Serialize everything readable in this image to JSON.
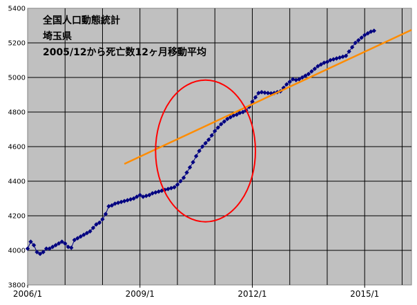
{
  "chart_data": {
    "type": "line",
    "title_lines": [
      "全国人口動態統計",
      "埼玉県",
      "2005/12から死亡数12ヶ月移動平均"
    ],
    "xlabel": "",
    "ylabel": "",
    "x_ticks": [
      "2006/1",
      "2009/1",
      "2012/1",
      "2015/1"
    ],
    "x_range": [
      "2006/1",
      "2016/4"
    ],
    "y_ticks": [
      3800,
      4000,
      4200,
      4400,
      4600,
      4800,
      5000,
      5200,
      5400
    ],
    "ylim": [
      3800,
      5400
    ],
    "grid": true,
    "plot_background": "#c0c0c0",
    "series": [
      {
        "type": "line-markers",
        "marker": "diamond",
        "color": "#000080",
        "x_start": "2006/1",
        "step": "1 month",
        "values": [
          4010,
          4050,
          4030,
          3990,
          3980,
          3990,
          4010,
          4010,
          4020,
          4030,
          4040,
          4050,
          4040,
          4020,
          4015,
          4060,
          4070,
          4080,
          4090,
          4100,
          4110,
          4130,
          4150,
          4160,
          4180,
          4210,
          4255,
          4260,
          4270,
          4275,
          4280,
          4285,
          4290,
          4295,
          4300,
          4310,
          4320,
          4310,
          4315,
          4320,
          4330,
          4335,
          4340,
          4345,
          4350,
          4355,
          4360,
          4365,
          4380,
          4400,
          4420,
          4450,
          4480,
          4510,
          4545,
          4575,
          4600,
          4620,
          4640,
          4665,
          4690,
          4710,
          4730,
          4745,
          4760,
          4770,
          4780,
          4785,
          4795,
          4800,
          4810,
          4830,
          4860,
          4885,
          4910,
          4915,
          4912,
          4910,
          4908,
          4910,
          4915,
          4920,
          4940,
          4960,
          4975,
          4990,
          4985,
          4990,
          5000,
          5010,
          5020,
          5035,
          5050,
          5065,
          5075,
          5085,
          5090,
          5100,
          5105,
          5110,
          5115,
          5120,
          5125,
          5150,
          5175,
          5200,
          5215,
          5230,
          5245,
          5255,
          5265,
          5270
        ]
      },
      {
        "type": "trend-line",
        "color": "#ff8c00",
        "start": {
          "x": "2008/8",
          "y": 4500
        },
        "end": {
          "x": "2016/4",
          "y": 5275
        }
      }
    ],
    "annotation": {
      "type": "ellipse",
      "color": "#ff0000",
      "center": {
        "x": "2010/10",
        "y": 4575
      },
      "x_radius_months": 16,
      "y_radius": 410
    }
  }
}
